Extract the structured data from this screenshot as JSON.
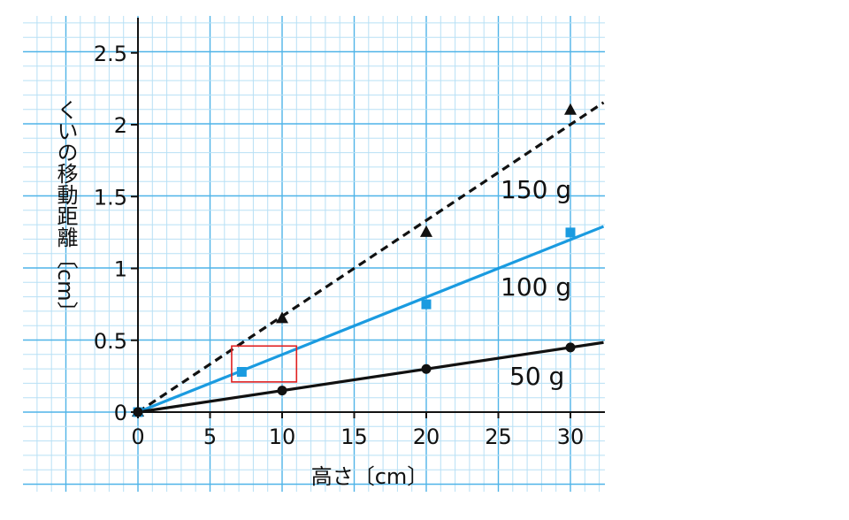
{
  "chart_data": {
    "type": "line",
    "xlabel": "高さ〔cm〕",
    "ylabel": "くいの移動距離〔cm〕",
    "xlim": [
      0,
      32.3
    ],
    "ylim": [
      0,
      2.6
    ],
    "x_ticks": [
      "0",
      "5",
      "10",
      "15",
      "20",
      "25",
      "30"
    ],
    "y_ticks": [
      "0",
      "0.5",
      "1",
      "1.5",
      "2",
      "2.5"
    ],
    "grid": true,
    "series": [
      {
        "name": "150 g",
        "marker": "triangle",
        "line_style": "dashed",
        "color": "#111111",
        "points": [
          [
            0,
            0
          ],
          [
            10,
            0.65
          ],
          [
            20,
            1.25
          ],
          [
            30,
            2.1
          ]
        ],
        "fit_slope": 0.0667
      },
      {
        "name": "100 g",
        "marker": "square",
        "line_style": "solid",
        "color": "#1a9be0",
        "points": [
          [
            0,
            0
          ],
          [
            7.2,
            0.28
          ],
          [
            20,
            0.75
          ],
          [
            30,
            1.25
          ]
        ],
        "fit_slope": 0.04
      },
      {
        "name": "50 g",
        "marker": "circle",
        "line_style": "solid",
        "color": "#111111",
        "points": [
          [
            0,
            0
          ],
          [
            10,
            0.15
          ],
          [
            20,
            0.3
          ],
          [
            30,
            0.45
          ]
        ],
        "fit_slope": 0.015
      }
    ],
    "highlight_box": {
      "x": [
        6.5,
        11
      ],
      "y": [
        0.21,
        0.46
      ],
      "color": "#e02020"
    }
  },
  "colors": {
    "grid_minor": "#b8e0f5",
    "grid_major": "#4fb4e8",
    "axis": "#111111"
  }
}
